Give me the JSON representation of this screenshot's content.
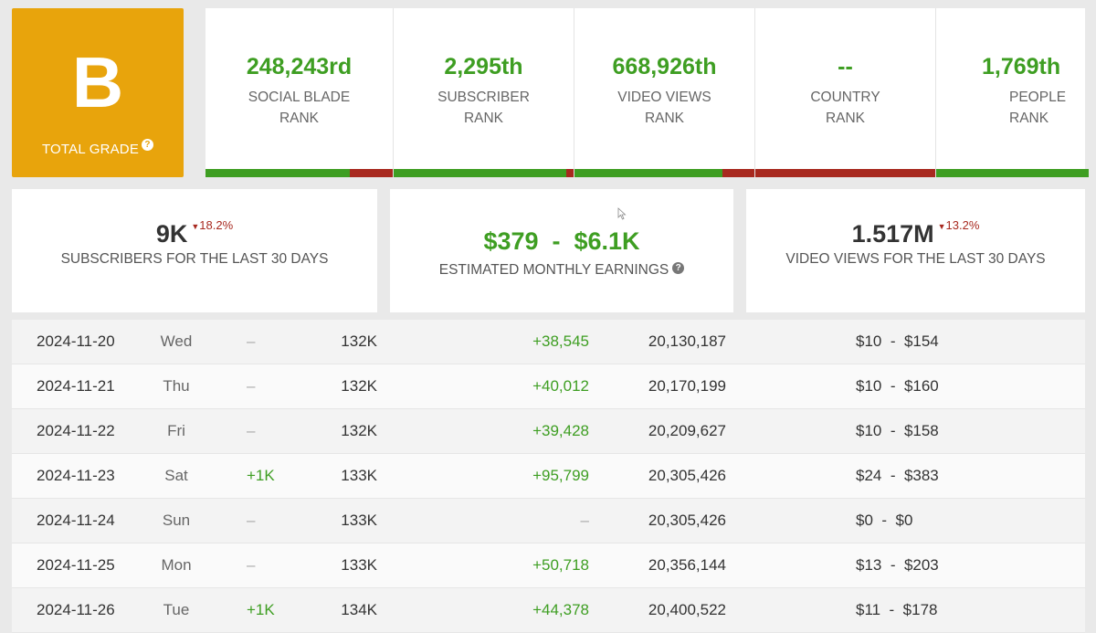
{
  "grade": {
    "letter": "B",
    "label": "TOTAL GRADE",
    "help_icon": "question-icon"
  },
  "ranks": [
    {
      "value": "248,243rd",
      "label_line1": "SOCIAL BLADE",
      "label_line2": "RANK",
      "bar_green_pct": 77
    },
    {
      "value": "2,295th",
      "label_line1": "SUBSCRIBER",
      "label_line2": "RANK",
      "bar_green_pct": 96
    },
    {
      "value": "668,926th",
      "label_line1": "VIDEO VIEWS",
      "label_line2": "RANK",
      "bar_green_pct": 82
    },
    {
      "value": "--",
      "label_line1": "COUNTRY",
      "label_line2": "RANK",
      "bar_green_pct": 0
    },
    {
      "value": "1,769th",
      "label_line1": "PEOPLE",
      "label_line2": "RANK",
      "bar_green_pct": 100
    }
  ],
  "stats": {
    "subscribers": {
      "value": "9K",
      "delta": "18.2%",
      "label": "SUBSCRIBERS FOR THE LAST 30 DAYS"
    },
    "earnings": {
      "value": "$379  -  $6.1K",
      "label": "ESTIMATED MONTHLY EARNINGS"
    },
    "views": {
      "value": "1.517M",
      "delta": "13.2%",
      "label": "VIDEO VIEWS FOR THE LAST 30 DAYS"
    }
  },
  "colors": {
    "accent_orange": "#e8a40c",
    "positive_green": "#3e9e22",
    "negative_red": "#a8291f"
  },
  "rows": [
    {
      "date": "2024-11-20",
      "day": "Wed",
      "sub_change": "–",
      "subs": "132K",
      "view_change": "+38,545",
      "views": "20,130,187",
      "earn_low": "$10",
      "earn_high": "$154"
    },
    {
      "date": "2024-11-21",
      "day": "Thu",
      "sub_change": "–",
      "subs": "132K",
      "view_change": "+40,012",
      "views": "20,170,199",
      "earn_low": "$10",
      "earn_high": "$160"
    },
    {
      "date": "2024-11-22",
      "day": "Fri",
      "sub_change": "–",
      "subs": "132K",
      "view_change": "+39,428",
      "views": "20,209,627",
      "earn_low": "$10",
      "earn_high": "$158"
    },
    {
      "date": "2024-11-23",
      "day": "Sat",
      "sub_change": "+1K",
      "subs": "133K",
      "view_change": "+95,799",
      "views": "20,305,426",
      "earn_low": "$24",
      "earn_high": "$383"
    },
    {
      "date": "2024-11-24",
      "day": "Sun",
      "sub_change": "–",
      "subs": "133K",
      "view_change": "–",
      "views": "20,305,426",
      "earn_low": "$0",
      "earn_high": "$0"
    },
    {
      "date": "2024-11-25",
      "day": "Mon",
      "sub_change": "–",
      "subs": "133K",
      "view_change": "+50,718",
      "views": "20,356,144",
      "earn_low": "$13",
      "earn_high": "$203"
    },
    {
      "date": "2024-11-26",
      "day": "Tue",
      "sub_change": "+1K",
      "subs": "134K",
      "view_change": "+44,378",
      "views": "20,400,522",
      "earn_low": "$11",
      "earn_high": "$178"
    }
  ]
}
